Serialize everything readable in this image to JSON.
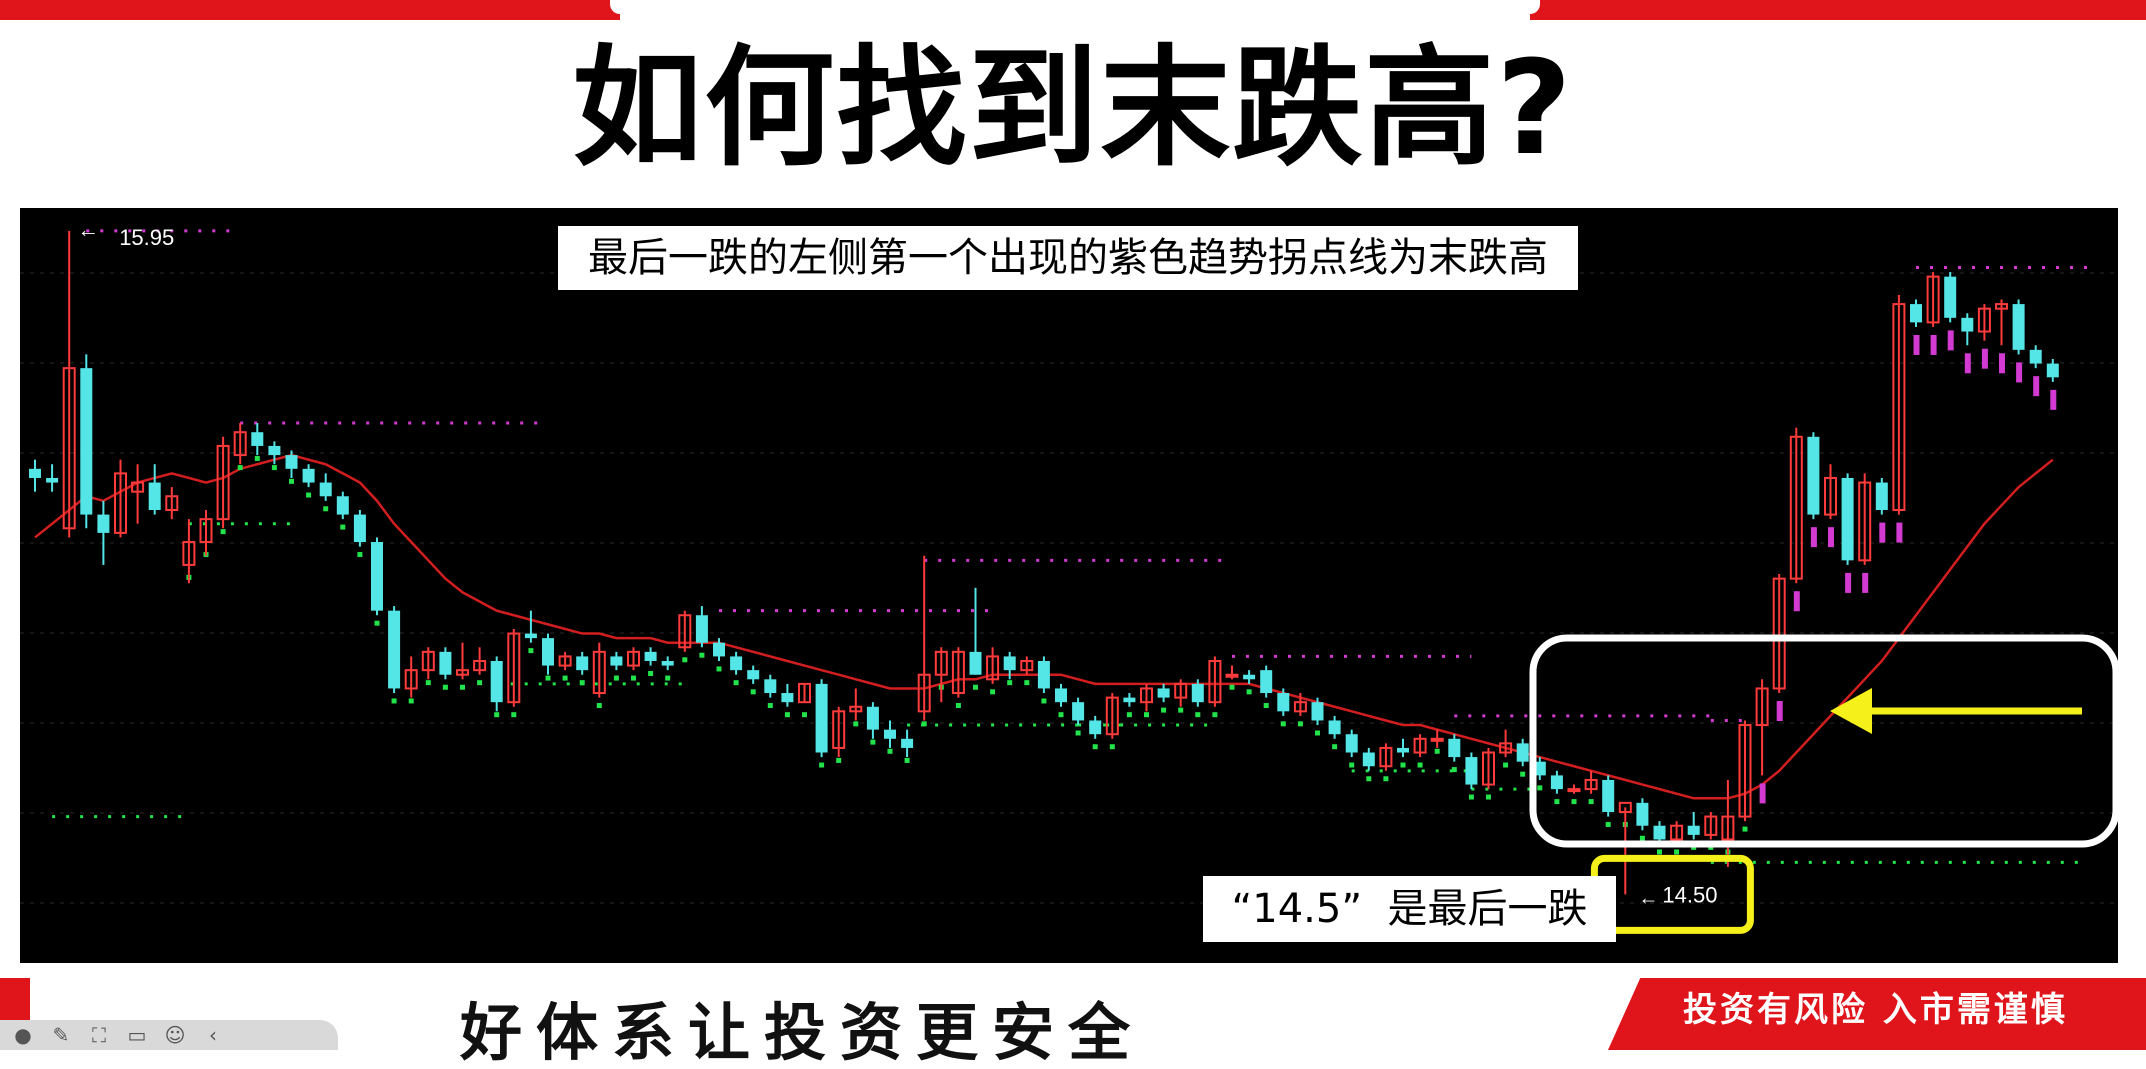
{
  "slide": {
    "title": "如何找到末跌高?",
    "banner": "最后一跌的左侧第一个出现的紫色趋势拐点线为末跌高",
    "note": "“14.5”  是最后一跌",
    "slogan": "好体系让投资更安全",
    "risk_notice": "投资有风险  入市需谨慎"
  },
  "colors": {
    "up_candle": "#ff3b3b",
    "down_candle": "#54e6e6",
    "moving_average": "#d21e1e",
    "trend_line_purple": "#d23ad2",
    "trend_dots_green": "#22e44a",
    "arrow": "#f5f019",
    "highlight_box": "#ffffff",
    "label_box": "#f5f019",
    "brand_red": "#e0141b"
  },
  "icons": [
    "play-icon",
    "pen-icon",
    "fullscreen-icon",
    "chat-icon",
    "emoji-icon",
    "back-icon"
  ],
  "chart_data": {
    "type": "candlestick",
    "price_labels": {
      "high": "15.95",
      "low": "14.50"
    },
    "high": 15.95,
    "low": 14.5,
    "annotations": [
      "最后一跌的左侧第一个出现的紫色趋势拐点线为末跌高",
      "“14.5”  是最后一跌"
    ],
    "candles": [
      [
        15.43,
        15.45,
        15.38,
        15.41
      ],
      [
        15.41,
        15.44,
        15.38,
        15.4
      ],
      [
        15.3,
        15.95,
        15.28,
        15.65
      ],
      [
        15.65,
        15.68,
        15.3,
        15.33
      ],
      [
        15.33,
        15.36,
        15.22,
        15.29
      ],
      [
        15.29,
        15.45,
        15.28,
        15.42
      ],
      [
        15.38,
        15.44,
        15.31,
        15.4
      ],
      [
        15.4,
        15.44,
        15.33,
        15.34
      ],
      [
        15.34,
        15.39,
        15.32,
        15.37
      ],
      [
        15.22,
        15.32,
        15.18,
        15.27
      ],
      [
        15.27,
        15.34,
        15.24,
        15.32
      ],
      [
        15.32,
        15.5,
        15.3,
        15.48
      ],
      [
        15.46,
        15.53,
        15.44,
        15.51
      ],
      [
        15.51,
        15.53,
        15.46,
        15.48
      ],
      [
        15.48,
        15.49,
        15.44,
        15.46
      ],
      [
        15.46,
        15.47,
        15.41,
        15.43
      ],
      [
        15.43,
        15.44,
        15.39,
        15.4
      ],
      [
        15.4,
        15.42,
        15.36,
        15.37
      ],
      [
        15.37,
        15.38,
        15.32,
        15.33
      ],
      [
        15.33,
        15.34,
        15.26,
        15.27
      ],
      [
        15.27,
        15.28,
        15.11,
        15.12
      ],
      [
        15.12,
        15.13,
        14.94,
        14.95
      ],
      [
        14.95,
        15.02,
        14.93,
        14.99
      ],
      [
        14.99,
        15.04,
        14.97,
        15.03
      ],
      [
        15.03,
        15.04,
        14.97,
        14.98
      ],
      [
        14.98,
        15.05,
        14.97,
        14.99
      ],
      [
        14.99,
        15.04,
        14.98,
        15.01
      ],
      [
        15.01,
        15.02,
        14.9,
        14.92
      ],
      [
        14.92,
        15.08,
        14.91,
        15.07
      ],
      [
        15.07,
        15.12,
        15.05,
        15.06
      ],
      [
        15.06,
        15.07,
        14.98,
        15.0
      ],
      [
        15.0,
        15.03,
        14.99,
        15.02
      ],
      [
        15.02,
        15.03,
        14.98,
        14.99
      ],
      [
        14.94,
        15.05,
        14.93,
        15.03
      ],
      [
        15.02,
        15.03,
        14.99,
        15.0
      ],
      [
        15.0,
        15.04,
        14.99,
        15.03
      ],
      [
        15.03,
        15.04,
        15.0,
        15.01
      ],
      [
        15.01,
        15.02,
        14.99,
        15.0
      ],
      [
        15.04,
        15.12,
        15.03,
        15.11
      ],
      [
        15.11,
        15.13,
        15.04,
        15.05
      ],
      [
        15.05,
        15.06,
        15.01,
        15.02
      ],
      [
        15.02,
        15.03,
        14.98,
        14.99
      ],
      [
        14.99,
        15.0,
        14.96,
        14.97
      ],
      [
        14.97,
        14.98,
        14.93,
        14.94
      ],
      [
        14.94,
        14.96,
        14.91,
        14.92
      ],
      [
        14.92,
        14.96,
        14.92,
        14.96
      ],
      [
        14.96,
        14.97,
        14.8,
        14.81
      ],
      [
        14.82,
        14.91,
        14.8,
        14.9
      ],
      [
        14.9,
        14.95,
        14.88,
        14.91
      ],
      [
        14.91,
        14.92,
        14.84,
        14.86
      ],
      [
        14.86,
        14.88,
        14.82,
        14.84
      ],
      [
        14.84,
        14.86,
        14.8,
        14.82
      ],
      [
        14.9,
        15.24,
        14.88,
        14.98
      ],
      [
        14.98,
        15.04,
        14.92,
        15.03
      ],
      [
        14.94,
        15.04,
        14.93,
        15.03
      ],
      [
        15.03,
        15.17,
        14.98,
        14.98
      ],
      [
        14.97,
        15.04,
        14.96,
        15.02
      ],
      [
        15.02,
        15.03,
        14.97,
        14.99
      ],
      [
        14.99,
        15.02,
        14.98,
        15.01
      ],
      [
        15.01,
        15.02,
        14.94,
        14.95
      ],
      [
        14.95,
        14.96,
        14.91,
        14.92
      ],
      [
        14.92,
        14.93,
        14.87,
        14.88
      ],
      [
        14.88,
        14.89,
        14.84,
        14.85
      ],
      [
        14.85,
        14.94,
        14.84,
        14.93
      ],
      [
        14.93,
        14.94,
        14.91,
        14.92
      ],
      [
        14.92,
        14.96,
        14.9,
        14.95
      ],
      [
        14.95,
        14.96,
        14.92,
        14.93
      ],
      [
        14.93,
        14.97,
        14.91,
        14.96
      ],
      [
        14.96,
        14.97,
        14.91,
        14.92
      ],
      [
        14.92,
        15.02,
        14.91,
        15.01
      ],
      [
        14.98,
        15.0,
        14.97,
        14.98
      ],
      [
        14.98,
        14.99,
        14.96,
        14.97
      ],
      [
        14.99,
        15.0,
        14.93,
        14.94
      ],
      [
        14.94,
        14.95,
        14.89,
        14.9
      ],
      [
        14.9,
        14.94,
        14.89,
        14.92
      ],
      [
        14.92,
        14.93,
        14.87,
        14.88
      ],
      [
        14.88,
        14.89,
        14.84,
        14.85
      ],
      [
        14.85,
        14.86,
        14.8,
        14.81
      ],
      [
        14.81,
        14.82,
        14.77,
        14.78
      ],
      [
        14.78,
        14.83,
        14.77,
        14.82
      ],
      [
        14.82,
        14.84,
        14.8,
        14.81
      ],
      [
        14.81,
        14.85,
        14.8,
        14.84
      ],
      [
        14.84,
        14.86,
        14.82,
        14.84
      ],
      [
        14.84,
        14.85,
        14.79,
        14.8
      ],
      [
        14.8,
        14.81,
        14.73,
        14.74
      ],
      [
        14.74,
        14.82,
        14.73,
        14.81
      ],
      [
        14.81,
        14.86,
        14.8,
        14.83
      ],
      [
        14.83,
        14.84,
        14.78,
        14.79
      ],
      [
        14.79,
        14.8,
        14.75,
        14.76
      ],
      [
        14.76,
        14.77,
        14.72,
        14.73
      ],
      [
        14.73,
        14.74,
        14.72,
        14.73
      ],
      [
        14.73,
        14.77,
        14.72,
        14.75
      ],
      [
        14.75,
        14.76,
        14.67,
        14.68
      ],
      [
        14.68,
        14.69,
        14.5,
        14.7
      ],
      [
        14.7,
        14.71,
        14.64,
        14.65
      ],
      [
        14.65,
        14.66,
        14.61,
        14.62
      ],
      [
        14.62,
        14.66,
        14.61,
        14.65
      ],
      [
        14.65,
        14.68,
        14.62,
        14.63
      ],
      [
        14.63,
        14.68,
        14.62,
        14.67
      ],
      [
        14.62,
        14.75,
        14.56,
        14.67
      ],
      [
        14.67,
        14.88,
        14.66,
        14.87
      ],
      [
        14.87,
        14.97,
        14.76,
        14.95
      ],
      [
        14.95,
        15.2,
        14.94,
        15.19
      ],
      [
        15.19,
        15.52,
        15.18,
        15.5
      ],
      [
        15.5,
        15.51,
        15.32,
        15.33
      ],
      [
        15.33,
        15.44,
        15.32,
        15.41
      ],
      [
        15.41,
        15.42,
        15.22,
        15.23
      ],
      [
        15.23,
        15.42,
        15.22,
        15.4
      ],
      [
        15.4,
        15.41,
        15.33,
        15.34
      ],
      [
        15.34,
        15.81,
        15.33,
        15.79
      ],
      [
        15.79,
        15.8,
        15.74,
        15.75
      ],
      [
        15.75,
        15.86,
        15.74,
        15.85
      ],
      [
        15.85,
        15.86,
        15.75,
        15.76
      ],
      [
        15.76,
        15.77,
        15.7,
        15.73
      ],
      [
        15.73,
        15.79,
        15.71,
        15.78
      ],
      [
        15.78,
        15.8,
        15.7,
        15.79
      ],
      [
        15.79,
        15.8,
        15.68,
        15.69
      ],
      [
        15.69,
        15.7,
        15.65,
        15.66
      ],
      [
        15.66,
        15.67,
        15.62,
        15.63
      ]
    ],
    "purple_levels": [
      {
        "y": 15.95,
        "from": 3,
        "to": 12
      },
      {
        "y": 15.53,
        "from": 12,
        "to": 30
      },
      {
        "y": 15.23,
        "from": 52,
        "to": 70
      },
      {
        "y": 15.12,
        "from": 40,
        "to": 56
      },
      {
        "y": 15.02,
        "from": 70,
        "to": 84
      },
      {
        "y": 14.89,
        "from": 83,
        "to": 98
      },
      {
        "y": 14.88,
        "from": 98,
        "to": 100
      },
      {
        "y": 15.87,
        "from": 110,
        "to": 120
      }
    ],
    "green_levels": [
      {
        "y": 14.67,
        "from": 1,
        "to": 9
      },
      {
        "y": 15.31,
        "from": 9,
        "to": 15
      },
      {
        "y": 14.96,
        "from": 27,
        "to": 38
      },
      {
        "y": 14.87,
        "from": 51,
        "to": 64
      },
      {
        "y": 14.87,
        "from": 61,
        "to": 69
      },
      {
        "y": 14.77,
        "from": 77,
        "to": 84
      },
      {
        "y": 14.73,
        "from": 84,
        "to": 88
      },
      {
        "y": 14.57,
        "from": 98,
        "to": 120
      }
    ],
    "ma": [
      15.28,
      15.31,
      15.34,
      15.37,
      15.36,
      15.38,
      15.4,
      15.41,
      15.42,
      15.41,
      15.4,
      15.41,
      15.43,
      15.44,
      15.45,
      15.46,
      15.45,
      15.44,
      15.42,
      15.4,
      15.36,
      15.31,
      15.27,
      15.23,
      15.19,
      15.16,
      15.14,
      15.12,
      15.11,
      15.1,
      15.09,
      15.08,
      15.07,
      15.07,
      15.06,
      15.06,
      15.06,
      15.05,
      15.05,
      15.05,
      15.05,
      15.04,
      15.03,
      15.02,
      15.01,
      15.0,
      14.99,
      14.98,
      14.97,
      14.96,
      14.95,
      14.95,
      14.95,
      14.96,
      14.97,
      14.97,
      14.98,
      14.98,
      14.98,
      14.98,
      14.98,
      14.97,
      14.96,
      14.96,
      14.96,
      14.96,
      14.96,
      14.96,
      14.96,
      14.96,
      14.96,
      14.96,
      14.95,
      14.94,
      14.93,
      14.92,
      14.91,
      14.9,
      14.89,
      14.88,
      14.87,
      14.87,
      14.86,
      14.85,
      14.84,
      14.83,
      14.82,
      14.81,
      14.8,
      14.79,
      14.78,
      14.77,
      14.76,
      14.75,
      14.74,
      14.73,
      14.72,
      14.71,
      14.71,
      14.71,
      14.72,
      14.74,
      14.77,
      14.81,
      14.85,
      14.89,
      14.93,
      14.97,
      15.01,
      15.06,
      15.11,
      15.16,
      15.21,
      15.26,
      15.31,
      15.35,
      15.39,
      15.42,
      15.45
    ]
  }
}
